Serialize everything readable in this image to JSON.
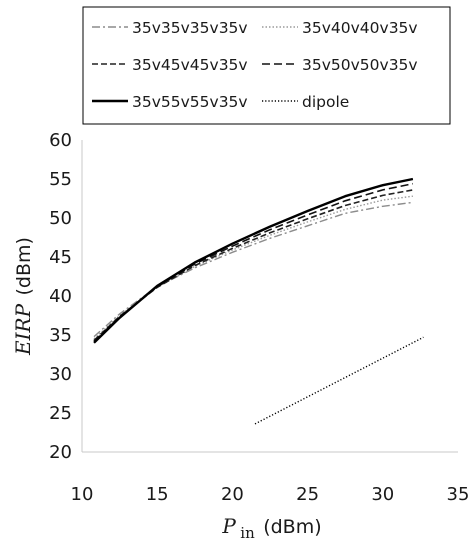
{
  "chart_data": {
    "type": "line",
    "xlabel": {
      "symbol": "P",
      "sub": "in",
      "unit": "(dBm)"
    },
    "ylabel": {
      "symbol": "EIRP",
      "unit": "(dBm)"
    },
    "xlim": [
      10,
      35
    ],
    "ylim": [
      20,
      60
    ],
    "xticks": [
      "10",
      "15",
      "20",
      "25",
      "30",
      "35"
    ],
    "yticks": [
      "20",
      "25",
      "30",
      "35",
      "40",
      "45",
      "50",
      "55",
      "60"
    ],
    "grid": false,
    "legend_position": "top",
    "series": [
      {
        "name": "35v35v35v35v",
        "style": "dashdot",
        "color": "#8c8c8c",
        "x": [
          10.8,
          12.5,
          15,
          17.5,
          20,
          22.5,
          25,
          27.5,
          30,
          32
        ],
        "y": [
          34.8,
          37.7,
          41.2,
          43.6,
          45.6,
          47.4,
          49.0,
          50.6,
          51.5,
          52.0
        ]
      },
      {
        "name": "35v40v40v35v",
        "style": "dotted",
        "color": "#9a9a9a",
        "x": [
          10.8,
          12.5,
          15,
          17.5,
          20,
          22.5,
          25,
          27.5,
          30,
          32
        ],
        "y": [
          34.5,
          37.5,
          41.1,
          43.8,
          45.9,
          47.8,
          49.5,
          51.1,
          52.3,
          52.8
        ]
      },
      {
        "name": "35v45v45v35v",
        "style": "dashed",
        "color": "#222222",
        "x": [
          10.8,
          12.5,
          15,
          17.5,
          20,
          22.5,
          25,
          27.5,
          30,
          32
        ],
        "y": [
          34.3,
          37.4,
          41.1,
          43.9,
          46.1,
          48.1,
          49.9,
          51.6,
          52.9,
          53.6
        ]
      },
      {
        "name": "35v50v50v35v",
        "style": "longdash",
        "color": "#111111",
        "x": [
          10.8,
          12.5,
          15,
          17.5,
          20,
          22.5,
          25,
          27.5,
          30,
          32
        ],
        "y": [
          34.2,
          37.3,
          41.2,
          44.1,
          46.4,
          48.5,
          50.4,
          52.2,
          53.6,
          54.4
        ]
      },
      {
        "name": "35v55v55v35v",
        "style": "solid",
        "color": "#000000",
        "x": [
          10.8,
          12.5,
          15,
          17.5,
          20,
          22.5,
          25,
          27.5,
          30,
          32
        ],
        "y": [
          34.0,
          37.2,
          41.3,
          44.3,
          46.7,
          48.9,
          50.9,
          52.8,
          54.2,
          55.0
        ]
      },
      {
        "name": "dipole",
        "style": "densedot",
        "color": "#000000",
        "x": [
          21.5,
          32.7
        ],
        "y": [
          23.6,
          34.7
        ]
      }
    ]
  }
}
